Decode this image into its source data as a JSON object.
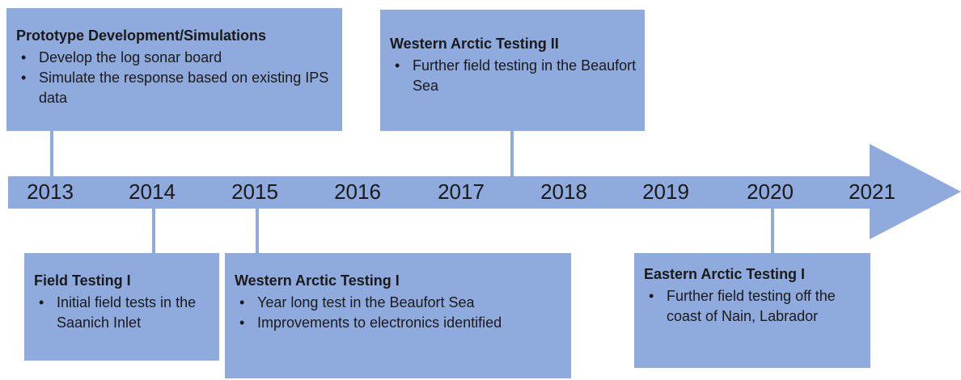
{
  "years": [
    "2013",
    "2014",
    "2015",
    "2016",
    "2017",
    "2018",
    "2019",
    "2020",
    "2021"
  ],
  "events": [
    {
      "title": "Prototype Development/Simulations",
      "bullets": [
        "Develop the log sonar board",
        "Simulate the response based on existing IPS data"
      ]
    },
    {
      "title": "Western Arctic Testing II",
      "bullets": [
        "Further field testing in the Beaufort Sea"
      ]
    },
    {
      "title": "Field Testing I",
      "bullets": [
        "Initial field tests in the Saanich Inlet"
      ]
    },
    {
      "title": "Western Arctic Testing I",
      "bullets": [
        "Year long test in the Beaufort Sea",
        "Improvements to electronics identified"
      ]
    },
    {
      "title": "Eastern Arctic Testing I",
      "bullets": [
        "Further field testing off the coast of Nain, Labrador"
      ]
    }
  ]
}
